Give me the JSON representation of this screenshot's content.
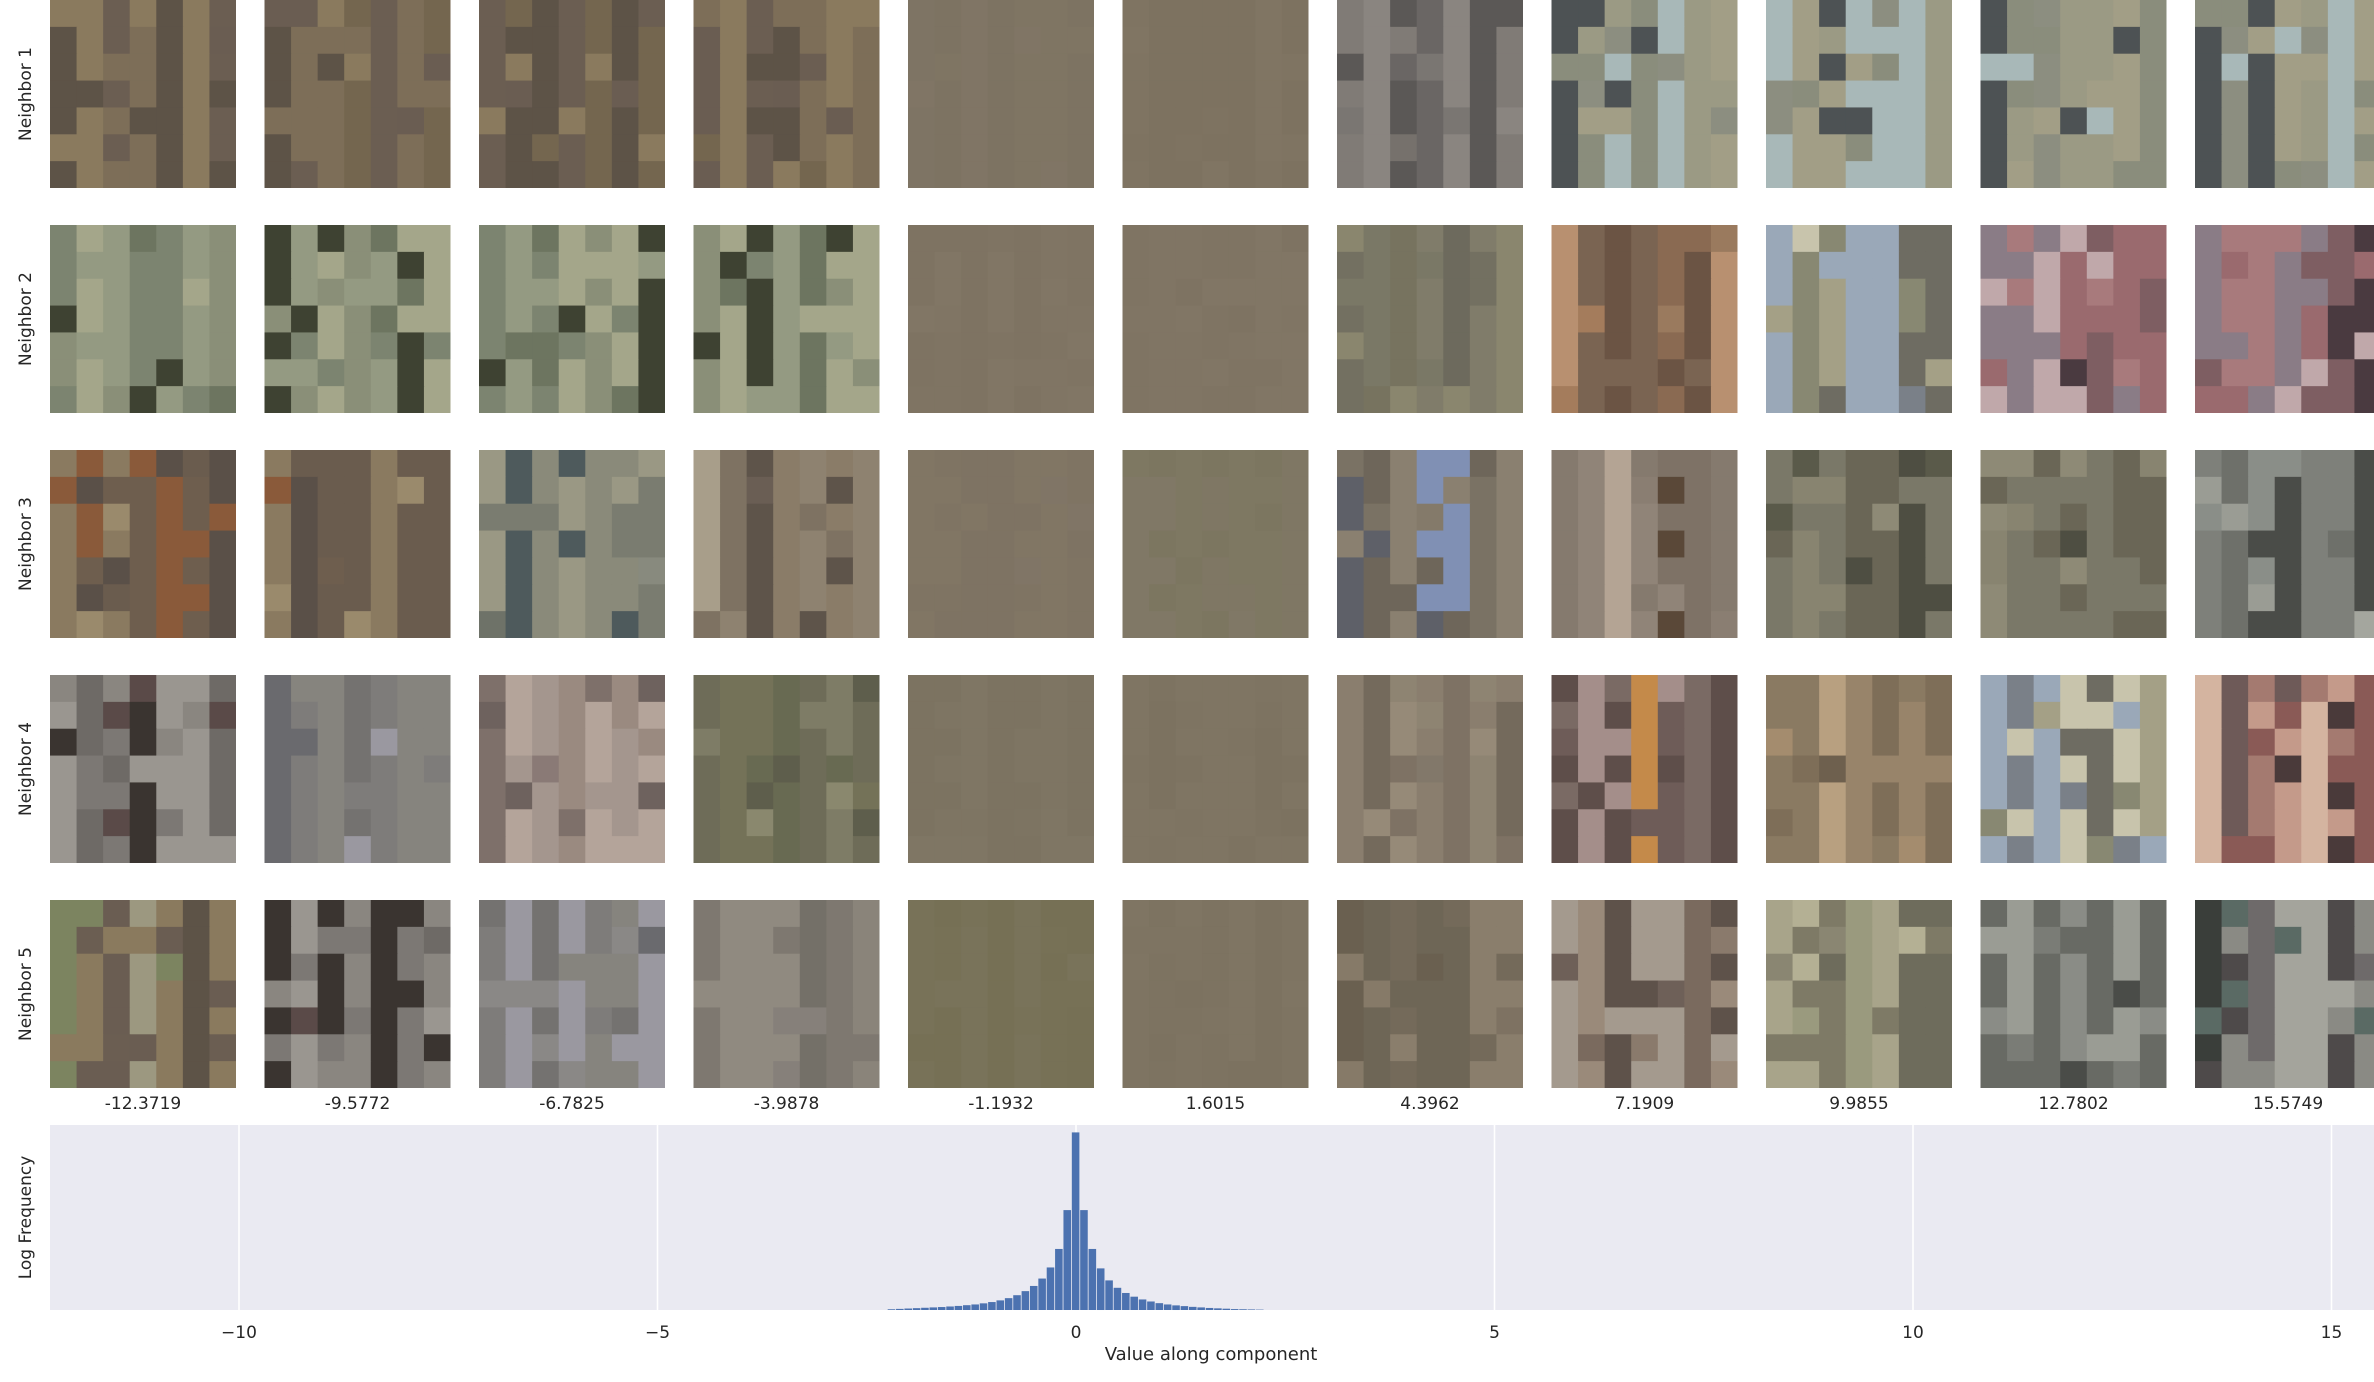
{
  "chart_data": {
    "type": "bar",
    "subtype": "histogram-with-image-grid",
    "row_labels": [
      "Neighbor 1",
      "Neighbor 2",
      "Neighbor 3",
      "Neighbor 4",
      "Neighbor 5"
    ],
    "column_values": [
      "-12.3719",
      "-9.5772",
      "-6.7825",
      "-3.9878",
      "-1.1932",
      "1.6015",
      "4.3962",
      "7.1909",
      "9.9855",
      "12.7802",
      "15.5749"
    ],
    "histogram": {
      "xlabel": "Value along component",
      "ylabel": "Log Frequency",
      "xlim": [
        -12.5,
        15.5
      ],
      "ylim": [
        0,
        1
      ],
      "x_ticks": [
        -10,
        -5,
        0,
        5,
        10,
        15
      ],
      "tick_labels": [
        "−10",
        "−5",
        "0",
        "5",
        "10",
        "15"
      ],
      "grid": true,
      "background": "#eaeaf2",
      "bar_color": "#4c72b0",
      "bin_width": 0.1,
      "bins": [
        {
          "x": -2.2,
          "v": 0.004
        },
        {
          "x": -2.1,
          "v": 0.006
        },
        {
          "x": -2.0,
          "v": 0.008
        },
        {
          "x": -1.9,
          "v": 0.01
        },
        {
          "x": -1.8,
          "v": 0.012
        },
        {
          "x": -1.7,
          "v": 0.014
        },
        {
          "x": -1.6,
          "v": 0.016
        },
        {
          "x": -1.5,
          "v": 0.019
        },
        {
          "x": -1.4,
          "v": 0.022
        },
        {
          "x": -1.3,
          "v": 0.026
        },
        {
          "x": -1.2,
          "v": 0.03
        },
        {
          "x": -1.1,
          "v": 0.036
        },
        {
          "x": -1.0,
          "v": 0.043
        },
        {
          "x": -0.9,
          "v": 0.052
        },
        {
          "x": -0.8,
          "v": 0.064
        },
        {
          "x": -0.7,
          "v": 0.08
        },
        {
          "x": -0.6,
          "v": 0.102
        },
        {
          "x": -0.5,
          "v": 0.13
        },
        {
          "x": -0.4,
          "v": 0.17
        },
        {
          "x": -0.3,
          "v": 0.23
        },
        {
          "x": -0.2,
          "v": 0.33
        },
        {
          "x": -0.1,
          "v": 0.54
        },
        {
          "x": 0.0,
          "v": 0.96
        },
        {
          "x": 0.1,
          "v": 0.54
        },
        {
          "x": 0.2,
          "v": 0.33
        },
        {
          "x": 0.3,
          "v": 0.225
        },
        {
          "x": 0.4,
          "v": 0.16
        },
        {
          "x": 0.5,
          "v": 0.12
        },
        {
          "x": 0.6,
          "v": 0.092
        },
        {
          "x": 0.7,
          "v": 0.072
        },
        {
          "x": 0.8,
          "v": 0.057
        },
        {
          "x": 0.9,
          "v": 0.046
        },
        {
          "x": 1.0,
          "v": 0.037
        },
        {
          "x": 1.1,
          "v": 0.03
        },
        {
          "x": 1.2,
          "v": 0.025
        },
        {
          "x": 1.3,
          "v": 0.021
        },
        {
          "x": 1.4,
          "v": 0.017
        },
        {
          "x": 1.5,
          "v": 0.014
        },
        {
          "x": 1.6,
          "v": 0.011
        },
        {
          "x": 1.7,
          "v": 0.009
        },
        {
          "x": 1.8,
          "v": 0.007
        },
        {
          "x": 1.9,
          "v": 0.005
        },
        {
          "x": 2.0,
          "v": 0.004
        },
        {
          "x": 2.1,
          "v": 0.003
        },
        {
          "x": 2.2,
          "v": 0.002
        }
      ]
    },
    "image_grid": [
      [
        {
          "palette": [
            "#6b5e52",
            "#7d6e58",
            "#5d5347",
            "#8a7a5e",
            "#74664f",
            "#6a5d52"
          ]
        },
        {
          "palette": [
            "#6b5e52",
            "#7d6e58",
            "#5d5347",
            "#8a7a5e",
            "#74664f",
            "#6a5d52"
          ]
        },
        {
          "palette": [
            "#6b5e52",
            "#7d6e58",
            "#5d5347",
            "#8a7a5e",
            "#74664f",
            "#6a5d52"
          ]
        },
        {
          "palette": [
            "#6b5e52",
            "#7d6e58",
            "#5d5347",
            "#8a7a5e",
            "#74664f",
            "#6a5d52"
          ]
        },
        {
          "palette": [
            "#7e7464",
            "#7f7563",
            "#7d7362",
            "#807565"
          ]
        },
        {
          "palette": [
            "#7f7462",
            "#7e7361",
            "#807563",
            "#7d7260"
          ]
        },
        {
          "palette": [
            "#8a8580",
            "#6a6664",
            "#5b5856",
            "#7a7672",
            "#807b76",
            "#76716c"
          ]
        },
        {
          "palette": [
            "#a8b8b8",
            "#4d5254",
            "#8a8d7c",
            "#9b9a84",
            "#a29e86",
            "#8c8e80"
          ]
        },
        {
          "palette": [
            "#a8b8b8",
            "#4d5254",
            "#8a8d7c",
            "#9b9a84",
            "#a29e86",
            "#8c8e80"
          ]
        },
        {
          "palette": [
            "#a8b8b8",
            "#4d5254",
            "#8a8d7c",
            "#9b9a84",
            "#a29e86",
            "#8c8e80"
          ]
        },
        {
          "palette": [
            "#a8b8b8",
            "#4d5254",
            "#8a8d7c",
            "#9b9a84",
            "#a29e86",
            "#8c8e80"
          ]
        }
      ],
      [
        {
          "palette": [
            "#a4a68a",
            "#6d7560",
            "#8a8f78",
            "#3e4232",
            "#7c8470",
            "#949a82"
          ]
        },
        {
          "palette": [
            "#a4a68a",
            "#6d7560",
            "#8a8f78",
            "#3e4232",
            "#7c8470",
            "#949a82"
          ]
        },
        {
          "palette": [
            "#a4a68a",
            "#6d7560",
            "#8a8f78",
            "#3e4232",
            "#7c8470",
            "#949a82"
          ]
        },
        {
          "palette": [
            "#a4a68a",
            "#6d7560",
            "#8a8f78",
            "#3e4232",
            "#7c8470",
            "#949a82"
          ]
        },
        {
          "palette": [
            "#807564",
            "#7f7463",
            "#817665",
            "#7e7362"
          ]
        },
        {
          "palette": [
            "#807564",
            "#7f7463",
            "#817665",
            "#7e7362"
          ]
        },
        {
          "palette": [
            "#7a7866",
            "#737061",
            "#8a866e",
            "#6d6a5d",
            "#807c6a",
            "#77735f"
          ]
        },
        {
          "palette": [
            "#7a6452",
            "#9a7a5e",
            "#6b5444",
            "#b89070",
            "#8a6a52",
            "#a47c5c"
          ]
        },
        {
          "palette": [
            "#9aa8b8",
            "#6e6c62",
            "#a4a086",
            "#888872",
            "#c8c4ac",
            "#7a8088"
          ]
        },
        {
          "palette": [
            "#8a7c86",
            "#4a3a40",
            "#9a6a6e",
            "#a87a7c",
            "#7e5e62",
            "#c0a8aa"
          ]
        },
        {
          "palette": [
            "#8a7c86",
            "#4a3a40",
            "#9a6a6e",
            "#a87a7c",
            "#7e5e62",
            "#c0a8aa"
          ]
        }
      ],
      [
        {
          "palette": [
            "#8a5a3a",
            "#6e5e4e",
            "#8a7a60",
            "#5a5048",
            "#9a8a6c",
            "#6a5c4e"
          ]
        },
        {
          "palette": [
            "#8a5a3a",
            "#6e5e4e",
            "#8a7a60",
            "#5a5048",
            "#9a8a6c",
            "#6a5c4e"
          ]
        },
        {
          "palette": [
            "#4e5a5c",
            "#8a8a7a",
            "#9a9884",
            "#6e7268",
            "#7a7c70",
            "#888a7e"
          ]
        },
        {
          "palette": [
            "#7e7262",
            "#8e8270",
            "#6a5e54",
            "#a89e8a",
            "#5e544a",
            "#8a7c68"
          ]
        },
        {
          "palette": [
            "#807566",
            "#7f7463",
            "#817664",
            "#7e7363"
          ]
        },
        {
          "palette": [
            "#7f7764",
            "#7e7862",
            "#807866",
            "#7c7660"
          ]
        },
        {
          "palette": [
            "#8090b4",
            "#5e6068",
            "#7a7264",
            "#8a8070",
            "#6e665a",
            "#847a6a"
          ]
        },
        {
          "palette": [
            "#8a7e72",
            "#857a6e",
            "#5a4838",
            "#b4a494",
            "#7e7266",
            "#908478"
          ]
        },
        {
          "palette": [
            "#5a5a4a",
            "#7a7868",
            "#6a6656",
            "#888470",
            "#4e4e42",
            "#8e8a76"
          ]
        },
        {
          "palette": [
            "#5a5a4a",
            "#7a7868",
            "#6a6656",
            "#888470",
            "#4e4e42",
            "#8e8a76"
          ]
        },
        {
          "palette": [
            "#8a8e88",
            "#4a4c48",
            "#9a9c94",
            "#6e706a",
            "#a4a69e",
            "#7e807a"
          ]
        }
      ],
      [
        {
          "palette": [
            "#5a4a48",
            "#8a8680",
            "#3a3430",
            "#9a9690",
            "#6e6a66",
            "#7c7874"
          ]
        },
        {
          "palette": [
            "#6a6a6e",
            "#9a98a0",
            "#7e7c7a",
            "#8a8886",
            "#747270",
            "#86847e"
          ]
        },
        {
          "palette": [
            "#8a7a76",
            "#a4968e",
            "#6e625e",
            "#b4a49a",
            "#7e706a",
            "#9a8a80"
          ]
        },
        {
          "palette": [
            "#6e6c58",
            "#7e7c66",
            "#5e5e4c",
            "#8a886e",
            "#747258",
            "#686a52"
          ]
        },
        {
          "palette": [
            "#7d7462",
            "#7e7563",
            "#7c7361",
            "#7f7664"
          ]
        },
        {
          "palette": [
            "#7e7462",
            "#7d7361",
            "#7f7563",
            "#7c7260"
          ]
        },
        {
          "palette": [
            "#8a7e6e",
            "#7e7264",
            "#968a78",
            "#746a5c",
            "#8e8472",
            "#82786a"
          ]
        },
        {
          "palette": [
            "#6e5c58",
            "#5e4e4a",
            "#c48a4a",
            "#a48e8a",
            "#7a6a64",
            "#8a7a70"
          ]
        },
        {
          "palette": [
            "#8a7a62",
            "#a48c6e",
            "#6e604e",
            "#b8a080",
            "#7e6e58",
            "#98846a"
          ]
        },
        {
          "palette": [
            "#9aa8b8",
            "#6e6c62",
            "#a4a086",
            "#888872",
            "#c8c4ac",
            "#7a8088"
          ]
        },
        {
          "palette": [
            "#8a5a56",
            "#c49a8a",
            "#4a3a3a",
            "#a47a70",
            "#6e5a58",
            "#d4b4a0"
          ]
        }
      ],
      [
        {
          "palette": [
            "#6b5e52",
            "#8a7a5e",
            "#9c9880",
            "#5d5347",
            "#7c8460",
            "#6a5d52"
          ]
        },
        {
          "palette": [
            "#5a4a48",
            "#8a8680",
            "#3a3430",
            "#9a9690",
            "#6e6a66",
            "#7c7874"
          ]
        },
        {
          "palette": [
            "#6a6a6e",
            "#9a98a0",
            "#7e7c7a",
            "#8a8886",
            "#747270",
            "#86847e"
          ]
        },
        {
          "palette": [
            "#7e7870",
            "#8a847a",
            "#747068",
            "#908a80",
            "#6e6a62",
            "#86807a"
          ]
        },
        {
          "palette": [
            "#787258",
            "#777156",
            "#79735a",
            "#767055"
          ]
        },
        {
          "palette": [
            "#7e7462",
            "#7d7361",
            "#7f7563",
            "#7c7260"
          ]
        },
        {
          "palette": [
            "#7e7262",
            "#6e6656",
            "#8a7e6c",
            "#746a5a",
            "#867a68",
            "#6a6050"
          ]
        },
        {
          "palette": [
            "#7a6a5e",
            "#8a7a6c",
            "#5e524a",
            "#9a8a7a",
            "#6e6058",
            "#a49a8e"
          ]
        },
        {
          "palette": [
            "#9a9a7e",
            "#7e7a66",
            "#b4b094",
            "#6e6c5c",
            "#a8a48a",
            "#8a8672"
          ]
        },
        {
          "palette": [
            "#9a9c94",
            "#4a4c48",
            "#8a8c86",
            "#7a7c76",
            "#aeb0a8",
            "#686a64"
          ]
        },
        {
          "palette": [
            "#5a6a64",
            "#3a3e3a",
            "#8a8a84",
            "#6e6a6a",
            "#a4a49c",
            "#4e4a4a"
          ]
        }
      ]
    ]
  }
}
